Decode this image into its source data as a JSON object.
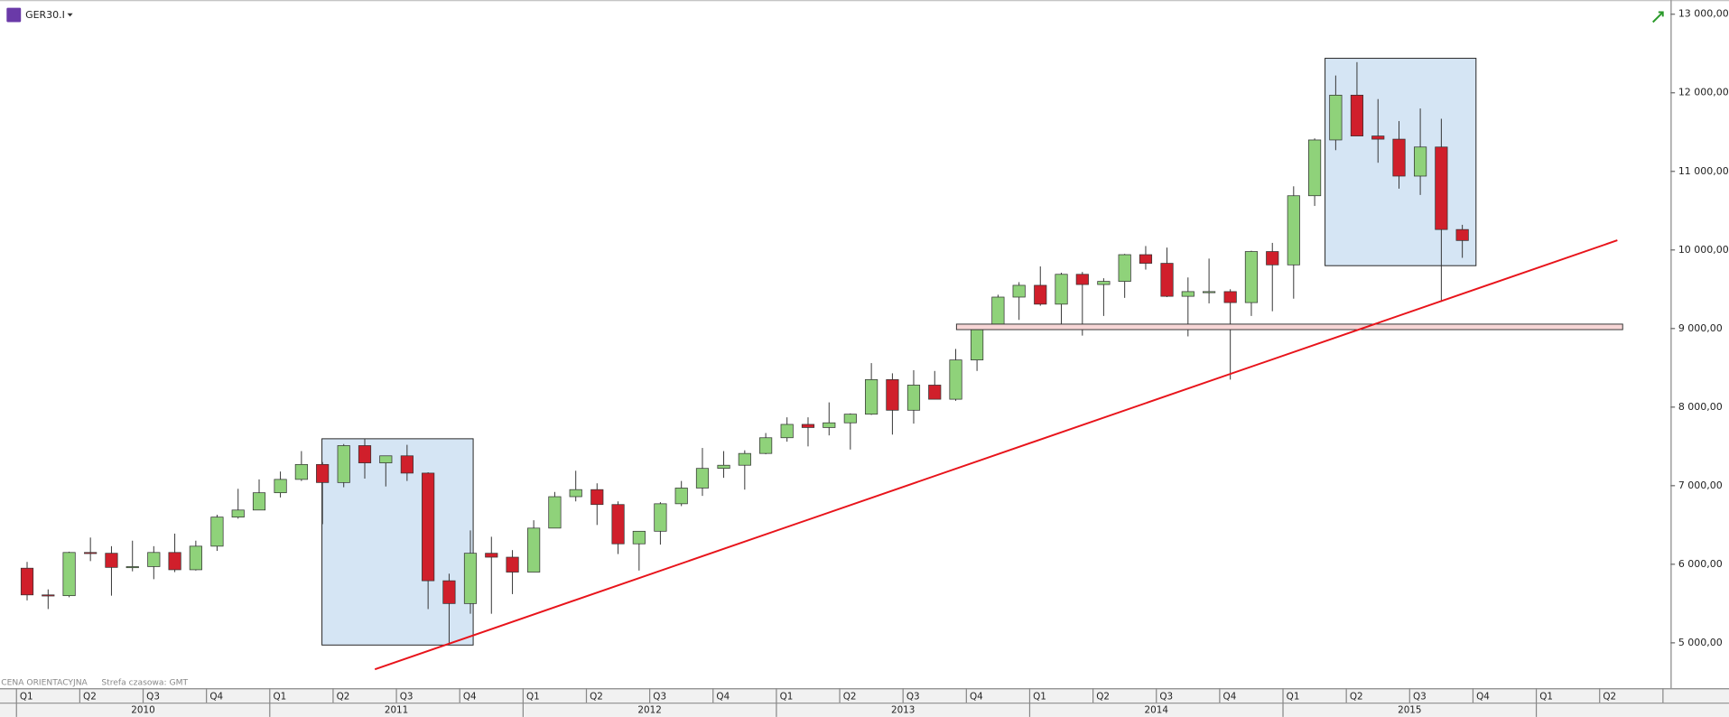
{
  "header": {
    "symbol": "GER30.I"
  },
  "footer": {
    "price_note": "CENA ORIENTACYJNA",
    "timezone": "Strefa czasowa: GMT"
  },
  "chart_data": {
    "type": "candlestick",
    "x": [
      2010.042,
      2010.125,
      2010.208,
      2010.292,
      2010.375,
      2010.458,
      2010.542,
      2010.625,
      2010.708,
      2010.792,
      2010.875,
      2010.958,
      2011.042,
      2011.125,
      2011.208,
      2011.292,
      2011.375,
      2011.458,
      2011.542,
      2011.625,
      2011.708,
      2011.792,
      2011.875,
      2011.958,
      2012.042,
      2012.125,
      2012.208,
      2012.292,
      2012.375,
      2012.458,
      2012.542,
      2012.625,
      2012.708,
      2012.792,
      2012.875,
      2012.958,
      2013.042,
      2013.125,
      2013.208,
      2013.292,
      2013.375,
      2013.458,
      2013.542,
      2013.625,
      2013.708,
      2013.792,
      2013.875,
      2013.958,
      2014.042,
      2014.125,
      2014.208,
      2014.292,
      2014.375,
      2014.458,
      2014.542,
      2014.625,
      2014.708,
      2014.792,
      2014.875,
      2014.958,
      2015.042,
      2015.125,
      2015.208,
      2015.292,
      2015.375,
      2015.458,
      2015.542,
      2015.625,
      2015.708
    ],
    "open": [
      5950,
      5610,
      5600,
      6150,
      6140,
      5960,
      5970,
      6150,
      5930,
      6230,
      6600,
      6690,
      6910,
      7080,
      7270,
      7040,
      7510,
      7290,
      7380,
      7160,
      5790,
      5500,
      6140,
      6090,
      5900,
      6460,
      6860,
      6950,
      6760,
      6260,
      6420,
      6770,
      6970,
      7220,
      7260,
      7410,
      7610,
      7780,
      7740,
      7800,
      7910,
      8350,
      7960,
      8280,
      8100,
      8600,
      9030,
      9400,
      9550,
      9310,
      9690,
      9560,
      9600,
      9940,
      9830,
      9410,
      9470,
      9470,
      9330,
      9980,
      9810,
      10690,
      11400,
      11970,
      11450,
      11410,
      10940,
      11310,
      10260
    ],
    "high": [
      6030,
      5680,
      6160,
      6340,
      6230,
      6300,
      6230,
      6390,
      6300,
      6630,
      6960,
      7080,
      7180,
      7440,
      7300,
      7530,
      7600,
      7350,
      7520,
      7170,
      5880,
      6430,
      6350,
      6180,
      6560,
      6920,
      7190,
      7030,
      6800,
      6420,
      6790,
      7060,
      7480,
      7440,
      7450,
      7670,
      7870,
      7870,
      8060,
      7920,
      8560,
      8430,
      8470,
      8460,
      8740,
      9060,
      9430,
      9590,
      9790,
      9710,
      9720,
      9640,
      9950,
      10050,
      10030,
      9650,
      9890,
      9500,
      9990,
      10090,
      10810,
      11420,
      12220,
      12390,
      11920,
      11640,
      11800,
      11670,
      10320
    ],
    "low": [
      5540,
      5430,
      5580,
      6040,
      5600,
      5910,
      5810,
      5900,
      5920,
      6170,
      6580,
      6690,
      6850,
      7060,
      6510,
      6980,
      7090,
      6990,
      7060,
      5430,
      4970,
      5370,
      5370,
      5620,
      5900,
      6460,
      6800,
      6500,
      6130,
      5920,
      6250,
      6740,
      6870,
      7100,
      6950,
      7400,
      7560,
      7500,
      7640,
      7460,
      7900,
      7650,
      7790,
      8100,
      8080,
      8460,
      9000,
      9110,
      9290,
      9020,
      8910,
      9160,
      9390,
      9750,
      9400,
      8900,
      9320,
      8350,
      9160,
      9220,
      9380,
      10560,
      11270,
      11450,
      11110,
      10780,
      10700,
      9340,
      9900
    ],
    "close": [
      5610,
      5600,
      6150,
      6140,
      5960,
      5970,
      6150,
      5930,
      6230,
      6600,
      6690,
      6910,
      7080,
      7270,
      7040,
      7510,
      7290,
      7380,
      7160,
      5790,
      5500,
      6140,
      6090,
      5900,
      6460,
      6860,
      6950,
      6760,
      6260,
      6420,
      6770,
      6970,
      7220,
      7260,
      7410,
      7610,
      7780,
      7740,
      7800,
      7910,
      8350,
      7960,
      8280,
      8100,
      8600,
      9030,
      9400,
      9550,
      9310,
      9690,
      9560,
      9600,
      9940,
      9830,
      9410,
      9470,
      9470,
      9330,
      9980,
      9810,
      10690,
      11400,
      11970,
      11450,
      11410,
      10940,
      11310,
      10260,
      10120
    ],
    "up_color": "#8fd27a",
    "down_color": "#d01f2b",
    "xlim": [
      2009.935,
      2016.53
    ],
    "ylim": [
      4450,
      13180
    ],
    "yticks": [
      {
        "value": 5000,
        "label": "5 000,00"
      },
      {
        "value": 6000,
        "label": "6 000,00"
      },
      {
        "value": 7000,
        "label": "7 000,00"
      },
      {
        "value": 8000,
        "label": "8 000,00"
      },
      {
        "value": 9000,
        "label": "9 000,00"
      },
      {
        "value": 10000,
        "label": "10 000,00"
      },
      {
        "value": 11000,
        "label": "11 000,00"
      },
      {
        "value": 12000,
        "label": "12 000,00"
      },
      {
        "value": 13000,
        "label": "13 000,00"
      }
    ],
    "quarters": [
      "Q1",
      "Q2",
      "Q3",
      "Q4",
      "Q1",
      "Q2",
      "Q3",
      "Q4",
      "Q1",
      "Q2",
      "Q3",
      "Q4",
      "Q1",
      "Q2",
      "Q3",
      "Q4",
      "Q1",
      "Q2",
      "Q3",
      "Q4",
      "Q1",
      "Q2",
      "Q3",
      "Q4",
      "Q1",
      "Q2"
    ],
    "years": [
      "2010",
      "2011",
      "2012",
      "2013",
      "2014",
      "2015"
    ],
    "annotations": {
      "rectangles": [
        {
          "x": [
            2011.206,
            2011.803
          ],
          "y": [
            4972,
            7597
          ],
          "color": "#d5e5f4"
        },
        {
          "x": [
            2015.166,
            2015.762
          ],
          "y": [
            9800,
            12439
          ],
          "color": "#d5e5f4"
        }
      ],
      "trendline": {
        "x": [
          2011.415,
          2016.32
        ],
        "y": [
          4663,
          10123
        ],
        "color": "#e8141b"
      },
      "zone": {
        "x": [
          2013.711,
          2016.341
        ],
        "y": [
          8986,
          9056
        ],
        "color": "#f7d6d6"
      }
    }
  }
}
